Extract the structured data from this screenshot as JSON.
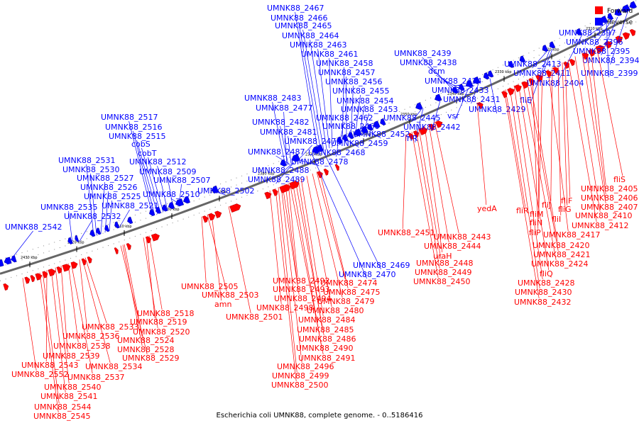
{
  "title": "Escherichia coli UMNK88, complete genome. - 0..5186416",
  "legend": {
    "items": [
      {
        "label": "Forward",
        "color": "#ff0000"
      },
      {
        "label": "Reverse",
        "color": "#0000ff"
      }
    ]
  },
  "colors": {
    "forward": "#ff0000",
    "reverse": "#0000ff",
    "backbone": "#666666"
  },
  "ticks": [
    "2430 kbp",
    "2420 kbp",
    "2410 kbp",
    "2400 kbp",
    "2390 kbp",
    "2380 kbp",
    "2370 kbp",
    "2360 kbp",
    "2350 kbp",
    "2340 kbp",
    "2330 kbp",
    "2320 kbp",
    "2310 kbp"
  ],
  "reverse_labels": [
    "UMNK88_2542",
    "UMNK88_2535",
    "UMNK88_2532",
    "UMNK88_2531",
    "UMNK88_2530",
    "UMNK88_2527",
    "UMNK88_2526",
    "UMNK88_2525",
    "UMNK88_2521",
    "UMNK88_2517",
    "UMNK88_2516",
    "UMNK88_2515",
    "cobS",
    "cobT",
    "UMNK88_2512",
    "UMNK88_2509",
    "UMNK88_2507",
    "UMNK88_2510",
    "UMNK88_2502",
    "UMNK88_2483",
    "UMNK88_2477",
    "UMNK88_2482",
    "UMNK88_2481",
    "UMNK88_2476",
    "UMNK88_2487",
    "UMNK88_2478",
    "UMNK88_2488",
    "UMNK88_2489",
    "UMNK88_2467",
    "UMNK88_2466",
    "UMNK88_2465",
    "UMNK88_2464",
    "UMNK88_2463",
    "UMNK88_2461",
    "UMNK88_2458",
    "UMNK88_2457",
    "UMNK88_2456",
    "UMNK88_2455",
    "UMNK88_2454",
    "UMNK88_2453",
    "UMNK88_2462",
    "UMNK88_2460",
    "UMNK88_2452",
    "UMNK88_2459",
    "UMNK88_2468",
    "UMNK88_2439",
    "UMNK88_2438",
    "dcm",
    "UMNK88_2434",
    "UMNK88_2433",
    "UMNK88_2431",
    "vsr",
    "UMNK88_2445",
    "UMNK88_2442",
    "UMNK88_2429",
    "irlR",
    "UMNK88_2413",
    "UMNK88_2411",
    "fliE",
    "UMNK88_2404",
    "UMNK88_2397",
    "UMNK88_2396",
    "UMNK88_2395",
    "UMNK88_2394",
    "UMNK88_2399",
    "UMNK88_2469",
    "UMNK88_2470"
  ],
  "forward_labels": [
    "UMNK88_2505",
    "UMNK88_2503",
    "amn",
    "UMNK88_2501",
    "UMNK88_2518",
    "UMNK88_2519",
    "UMNK88_2520",
    "UMNK88_2533",
    "UMNK88_2536",
    "UMNK88_2524",
    "UMNK88_2538",
    "UMNK88_2528",
    "UMNK88_2539",
    "UMNK88_2529",
    "UMNK88_2534",
    "UMNK88_2543",
    "UMNK88_2537",
    "UMNK88_2552",
    "UMNK88_2540",
    "UMNK88_2541",
    "UMNK88_2544",
    "UMNK88_2545",
    "UMNK88_2492",
    "UMNK88_2493",
    "UMNK88_2494",
    "UMNK88_2498",
    "UMNK88_2474",
    "UMNK88_2475",
    "UMNK88_2479",
    "UMNK88_2480",
    "UMNK88_2484",
    "UMNK88_2485",
    "UMNK88_2486",
    "UMNK88_2490",
    "UMNK88_2491",
    "UMNK88_2496",
    "UMNK88_2499",
    "UMNK88_2500",
    "UMNK88_2451",
    "UMNK88_2443",
    "UMNK88_2444",
    "uraH",
    "UMNK88_2448",
    "UMNK88_2449",
    "UMNK88_2450",
    "yedA",
    "fliS",
    "UMNK88_2405",
    "UMNK88_2406",
    "UMNK88_2407",
    "UMNK88_2410",
    "UMNK88_2412",
    "fliF",
    "fliG",
    "fliI",
    "fliJ",
    "fliR",
    "fliM",
    "fliN",
    "fliP",
    "UMNK88_2417",
    "UMNK88_2420",
    "UMNK88_2421",
    "UMNK88_2424",
    "fliQ",
    "UMNK88_2428",
    "UMNK88_2430",
    "UMNK88_2432"
  ]
}
